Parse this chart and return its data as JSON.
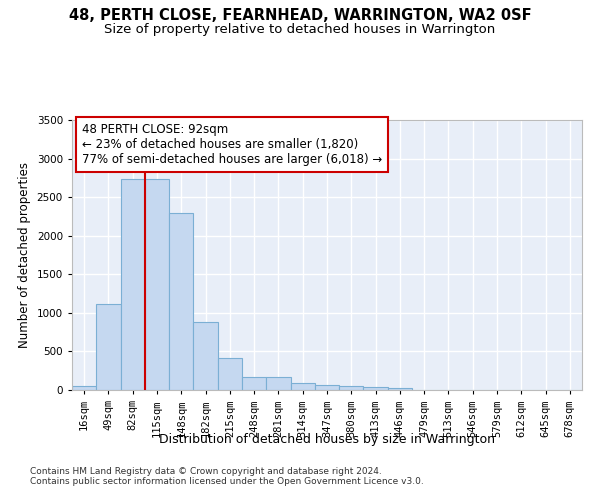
{
  "title1": "48, PERTH CLOSE, FEARNHEAD, WARRINGTON, WA2 0SF",
  "title2": "Size of property relative to detached houses in Warrington",
  "xlabel": "Distribution of detached houses by size in Warrington",
  "ylabel": "Number of detached properties",
  "bar_labels": [
    "16sqm",
    "49sqm",
    "82sqm",
    "115sqm",
    "148sqm",
    "182sqm",
    "215sqm",
    "248sqm",
    "281sqm",
    "314sqm",
    "347sqm",
    "380sqm",
    "413sqm",
    "446sqm",
    "479sqm",
    "513sqm",
    "546sqm",
    "579sqm",
    "612sqm",
    "645sqm",
    "678sqm"
  ],
  "bar_values": [
    50,
    1110,
    2740,
    2740,
    2300,
    880,
    420,
    175,
    165,
    90,
    60,
    55,
    35,
    25,
    0,
    0,
    0,
    0,
    0,
    0,
    0
  ],
  "bar_color": "#c5d8f0",
  "bar_edgecolor": "#7bafd4",
  "bar_linewidth": 0.8,
  "vline_x_index": 2,
  "vline_color": "#cc0000",
  "vline_linewidth": 1.5,
  "annotation_line1": "48 PERTH CLOSE: 92sqm",
  "annotation_line2": "← 23% of detached houses are smaller (1,820)",
  "annotation_line3": "77% of semi-detached houses are larger (6,018) →",
  "annotation_box_color": "#cc0000",
  "annotation_text_color": "#000000",
  "ylim": [
    0,
    3500
  ],
  "yticks": [
    0,
    500,
    1000,
    1500,
    2000,
    2500,
    3000,
    3500
  ],
  "bg_color": "#ffffff",
  "plot_bg_color": "#e8eef8",
  "grid_color": "#ffffff",
  "footer1": "Contains HM Land Registry data © Crown copyright and database right 2024.",
  "footer2": "Contains public sector information licensed under the Open Government Licence v3.0.",
  "title1_fontsize": 10.5,
  "title2_fontsize": 9.5,
  "xlabel_fontsize": 9,
  "ylabel_fontsize": 8.5,
  "tick_fontsize": 7.5,
  "annotation_fontsize": 8.5,
  "footer_fontsize": 6.5
}
